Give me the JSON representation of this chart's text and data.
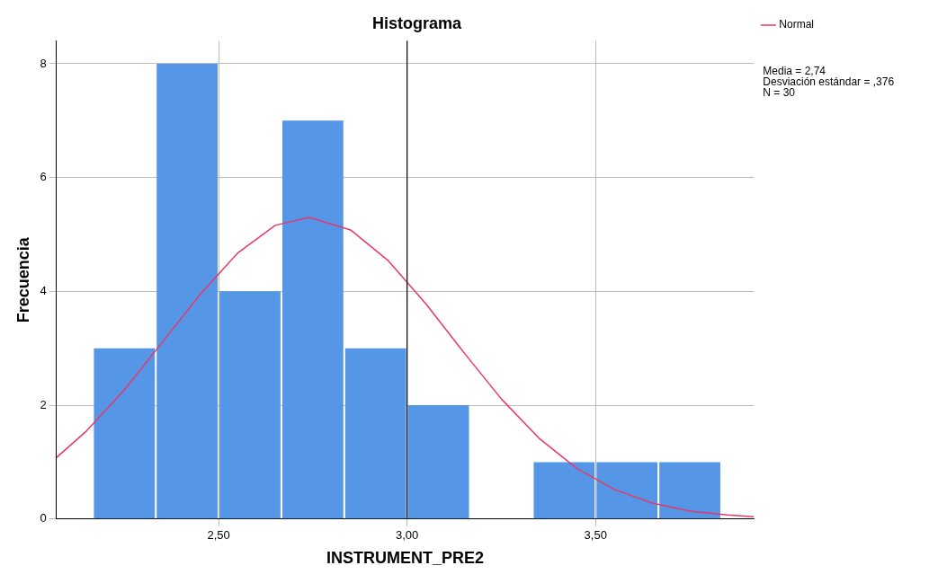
{
  "chart_data": {
    "type": "histogram",
    "title": "Histograma",
    "xlabel": "INSTRUMENT_PRE2",
    "ylabel": "Frecuencia",
    "bins": [
      2.1667,
      2.3333,
      2.5,
      2.6667,
      2.8333,
      3.0,
      3.1667,
      3.3333,
      3.5,
      3.6667,
      3.8333
    ],
    "values": [
      3,
      8,
      4,
      7,
      3,
      2,
      0,
      1,
      1,
      1
    ],
    "color": "#5596e6",
    "series": [
      {
        "name": "Normal",
        "type": "line",
        "color": "#e8386a",
        "x": [
          2.07,
          2.15,
          2.25,
          2.35,
          2.45,
          2.55,
          2.65,
          2.74,
          2.85,
          2.95,
          3.05,
          3.15,
          3.25,
          3.35,
          3.45,
          3.55,
          3.65,
          3.75,
          3.85,
          3.92
        ],
        "values": [
          1.08,
          1.55,
          2.27,
          3.1,
          3.94,
          4.67,
          5.16,
          5.3,
          5.08,
          4.54,
          3.78,
          2.93,
          2.11,
          1.42,
          0.89,
          0.52,
          0.28,
          0.14,
          0.07,
          0.04
        ]
      }
    ],
    "ref_lines": [
      {
        "axis": "x",
        "value": 3.0,
        "color": "#000000"
      }
    ],
    "annotations": [
      "Media = 2,74",
      "Desviación estándar = ,376",
      "N = 30"
    ],
    "xlim": [
      2.07,
      3.92
    ],
    "xticks": [
      {
        "value": 2.5,
        "label": "2,50"
      },
      {
        "value": 3.0,
        "label": "3,00"
      },
      {
        "value": 3.5,
        "label": "3,50"
      }
    ],
    "ylim": [
      0,
      8.4
    ],
    "yticks": [
      0,
      2,
      4,
      6,
      8
    ],
    "grid": true,
    "legend": "top right",
    "marker": "none",
    "line_style": "solid"
  }
}
